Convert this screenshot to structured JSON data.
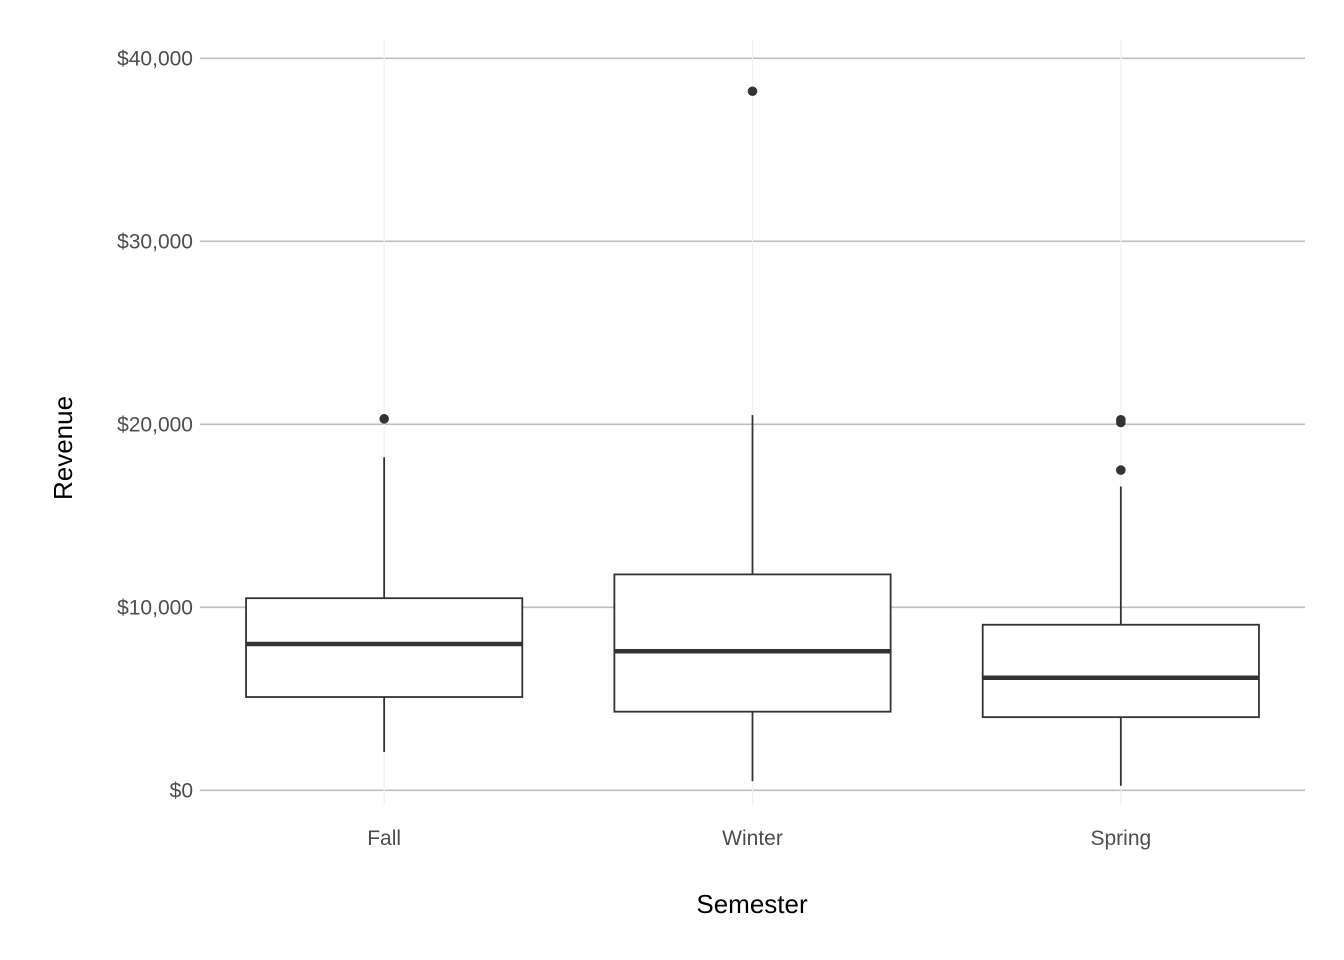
{
  "chart_data": {
    "type": "boxplot",
    "title": "",
    "xlabel": "Semester",
    "ylabel": "Revenue",
    "categories": [
      "Fall",
      "Winter",
      "Spring"
    ],
    "ylim": [
      -800,
      41000
    ],
    "y_ticks": [
      0,
      10000,
      20000,
      30000,
      40000
    ],
    "y_tick_labels": [
      "$0",
      "$10,000",
      "$20,000",
      "$30,000",
      "$40,000"
    ],
    "grid": "horizontal",
    "legend": "none",
    "colors": {
      "box_stroke": "#333333",
      "grid": "#bebebe",
      "tick_text": "#4d4d4d",
      "title_text": "#000000"
    },
    "boxes": [
      {
        "category": "Fall",
        "whisker_low": 2100,
        "q1": 5100,
        "median": 8000,
        "q3": 10500,
        "whisker_high": 18200,
        "outliers": [
          20300
        ]
      },
      {
        "category": "Winter",
        "whisker_low": 500,
        "q1": 4300,
        "median": 7600,
        "q3": 11800,
        "whisker_high": 20500,
        "outliers": [
          38200
        ]
      },
      {
        "category": "Spring",
        "whisker_low": 250,
        "q1": 4000,
        "median": 6150,
        "q3": 9050,
        "whisker_high": 16600,
        "outliers": [
          17500,
          20100,
          20250
        ]
      }
    ]
  }
}
